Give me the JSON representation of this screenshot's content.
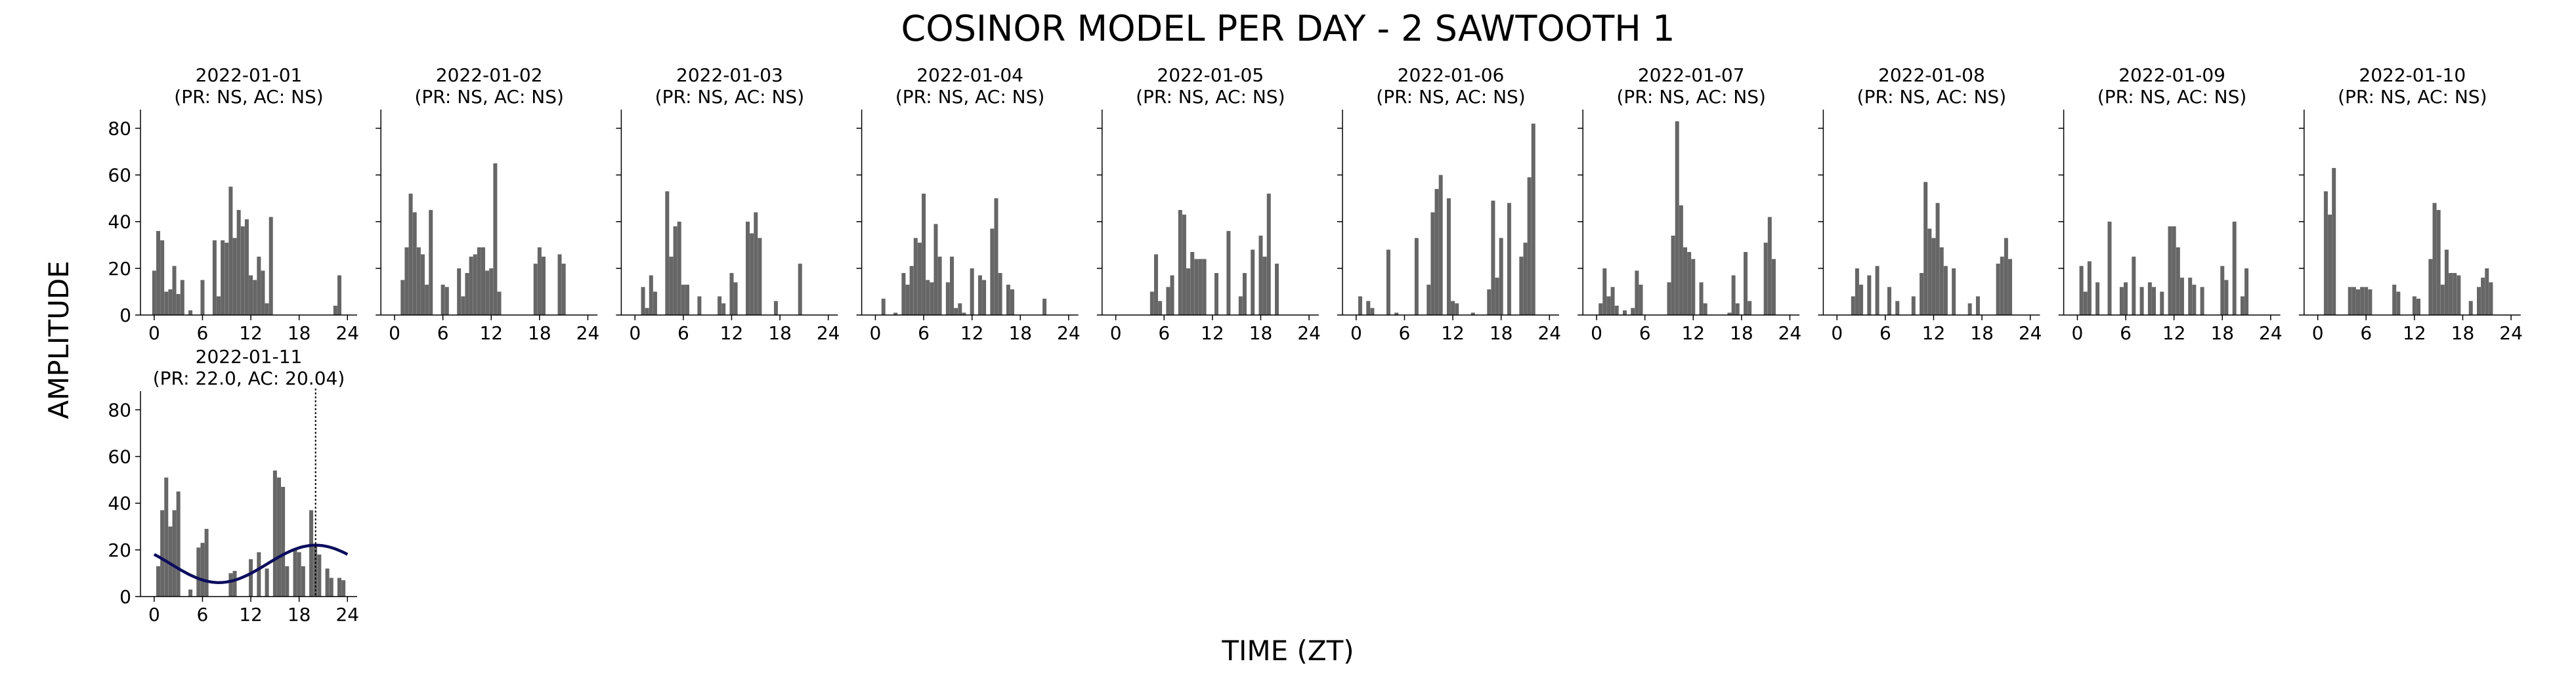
{
  "title": "COSINOR MODEL PER DAY - 2 SAWTOOTH 1",
  "xlabel": "TIME (ZT)",
  "ylabel": "AMPLITUDE",
  "colors": {
    "bar": "#666666",
    "fit": "#0d0d5e",
    "axis": "#000000",
    "vline": "#000000"
  },
  "chart_data": [
    {
      "type": "bar",
      "date": "2022-01-01",
      "subtitle": "(PR: NS, AC: NS)",
      "x": [
        0,
        0.5,
        1,
        1.5,
        2,
        2.5,
        3,
        3.5,
        4,
        4.5,
        5,
        5.5,
        6,
        6.5,
        7,
        7.5,
        8,
        8.5,
        9,
        9.5,
        10,
        10.5,
        11,
        11.5,
        12,
        12.5,
        13,
        13.5,
        14,
        14.5,
        15,
        15.5,
        16,
        16.5,
        17,
        17.5,
        18,
        18.5,
        19,
        19.5,
        20,
        20.5,
        21,
        21.5,
        22,
        22.5,
        23,
        23.5
      ],
      "values": [
        19,
        36,
        32,
        10,
        11,
        21,
        9,
        15,
        0,
        2,
        0,
        0,
        15,
        0,
        0,
        32,
        8,
        32,
        31,
        55,
        33,
        45,
        38,
        41,
        17,
        15,
        25,
        19,
        5,
        42,
        0,
        0,
        0,
        0,
        0,
        0,
        0,
        0,
        0,
        0,
        0,
        0,
        0,
        0,
        0,
        4,
        17,
        0
      ],
      "xticks": [
        0,
        6,
        12,
        18,
        24
      ],
      "yticks": [
        0,
        20,
        40,
        60,
        80
      ],
      "ylim": [
        0,
        88
      ]
    },
    {
      "type": "bar",
      "date": "2022-01-02",
      "subtitle": "(PR: NS, AC: NS)",
      "x": [
        0,
        0.5,
        1,
        1.5,
        2,
        2.5,
        3,
        3.5,
        4,
        4.5,
        5,
        5.5,
        6,
        6.5,
        7,
        7.5,
        8,
        8.5,
        9,
        9.5,
        10,
        10.5,
        11,
        11.5,
        12,
        12.5,
        13,
        13.5,
        14,
        14.5,
        15,
        15.5,
        16,
        16.5,
        17,
        17.5,
        18,
        18.5,
        19,
        19.5,
        20,
        20.5,
        21,
        21.5,
        22,
        22.5,
        23,
        23.5
      ],
      "values": [
        0,
        0,
        15,
        29,
        52,
        44,
        29,
        26,
        13,
        45,
        0,
        0,
        13,
        12,
        0,
        0,
        20,
        8,
        18,
        25,
        26,
        29,
        29,
        19,
        20,
        65,
        10,
        0,
        0,
        0,
        0,
        0,
        0,
        0,
        0,
        22,
        29,
        25,
        0,
        0,
        0,
        26,
        22,
        0,
        0,
        0,
        0,
        0
      ],
      "xticks": [
        0,
        6,
        12,
        18,
        24
      ],
      "yticks": [
        0,
        20,
        40,
        60,
        80
      ],
      "ylim": [
        0,
        88
      ]
    },
    {
      "type": "bar",
      "date": "2022-01-03",
      "subtitle": "(PR: NS, AC: NS)",
      "x": [
        0,
        0.5,
        1,
        1.5,
        2,
        2.5,
        3,
        3.5,
        4,
        4.5,
        5,
        5.5,
        6,
        6.5,
        7,
        7.5,
        8,
        8.5,
        9,
        9.5,
        10,
        10.5,
        11,
        11.5,
        12,
        12.5,
        13,
        13.5,
        14,
        14.5,
        15,
        15.5,
        16,
        16.5,
        17,
        17.5,
        18,
        18.5,
        19,
        19.5,
        20,
        20.5,
        21,
        21.5,
        22,
        22.5,
        23,
        23.5
      ],
      "values": [
        0,
        0,
        12,
        3,
        17,
        10,
        0,
        0,
        53,
        25,
        38,
        40,
        13,
        13,
        0,
        0,
        8,
        0,
        0,
        0,
        0,
        8,
        5,
        0,
        18,
        14,
        0,
        0,
        40,
        35,
        44,
        33,
        0,
        0,
        0,
        6,
        0,
        0,
        0,
        0,
        0,
        22,
        0,
        0,
        0,
        0,
        0,
        0
      ],
      "xticks": [
        0,
        6,
        12,
        18,
        24
      ],
      "yticks": [
        0,
        20,
        40,
        60,
        80
      ],
      "ylim": [
        0,
        88
      ]
    },
    {
      "type": "bar",
      "date": "2022-01-04",
      "subtitle": "(PR: NS, AC: NS)",
      "x": [
        0,
        0.5,
        1,
        1.5,
        2,
        2.5,
        3,
        3.5,
        4,
        4.5,
        5,
        5.5,
        6,
        6.5,
        7,
        7.5,
        8,
        8.5,
        9,
        9.5,
        10,
        10.5,
        11,
        11.5,
        12,
        12.5,
        13,
        13.5,
        14,
        14.5,
        15,
        15.5,
        16,
        16.5,
        17,
        17.5,
        18,
        18.5,
        19,
        19.5,
        20,
        20.5,
        21,
        21.5,
        22,
        22.5,
        23,
        23.5
      ],
      "values": [
        0,
        0,
        7,
        0,
        0,
        1,
        0,
        18,
        13,
        21,
        33,
        31,
        52,
        15,
        14,
        39,
        25,
        0,
        14,
        25,
        3,
        5,
        1,
        0,
        20,
        0,
        17,
        15,
        0,
        37,
        50,
        18,
        0,
        13,
        11,
        0,
        0,
        0,
        0,
        0,
        0,
        0,
        7,
        0,
        0,
        0,
        0,
        0
      ],
      "xticks": [
        0,
        6,
        12,
        18,
        24
      ],
      "yticks": [
        0,
        20,
        40,
        60,
        80
      ],
      "ylim": [
        0,
        88
      ]
    },
    {
      "type": "bar",
      "date": "2022-01-05",
      "subtitle": "(PR: NS, AC: NS)",
      "x": [
        0,
        0.5,
        1,
        1.5,
        2,
        2.5,
        3,
        3.5,
        4,
        4.5,
        5,
        5.5,
        6,
        6.5,
        7,
        7.5,
        8,
        8.5,
        9,
        9.5,
        10,
        10.5,
        11,
        11.5,
        12,
        12.5,
        13,
        13.5,
        14,
        14.5,
        15,
        15.5,
        16,
        16.5,
        17,
        17.5,
        18,
        18.5,
        19,
        19.5,
        20,
        20.5,
        21,
        21.5,
        22,
        22.5,
        23,
        23.5
      ],
      "values": [
        0,
        0,
        0,
        0,
        0,
        0,
        0,
        0,
        0,
        10,
        26,
        6,
        0,
        12,
        17,
        0,
        45,
        43,
        20,
        27,
        24,
        24,
        24,
        0,
        0,
        18,
        0,
        0,
        36,
        0,
        0,
        8,
        18,
        0,
        28,
        0,
        34,
        25,
        52,
        0,
        22,
        0,
        0,
        0,
        0,
        0,
        0,
        0
      ],
      "xticks": [
        0,
        6,
        12,
        18,
        24
      ],
      "yticks": [
        0,
        20,
        40,
        60,
        80
      ],
      "ylim": [
        0,
        88
      ]
    },
    {
      "type": "bar",
      "date": "2022-01-06",
      "subtitle": "(PR: NS, AC: NS)",
      "x": [
        0,
        0.5,
        1,
        1.5,
        2,
        2.5,
        3,
        3.5,
        4,
        4.5,
        5,
        5.5,
        6,
        6.5,
        7,
        7.5,
        8,
        8.5,
        9,
        9.5,
        10,
        10.5,
        11,
        11.5,
        12,
        12.5,
        13,
        13.5,
        14,
        14.5,
        15,
        15.5,
        16,
        16.5,
        17,
        17.5,
        18,
        18.5,
        19,
        19.5,
        20,
        20.5,
        21,
        21.5,
        22,
        22.5,
        23,
        23.5
      ],
      "values": [
        0,
        8,
        0,
        6,
        3,
        0,
        0,
        0,
        28,
        0,
        1,
        0,
        0,
        0,
        0,
        33,
        0,
        0,
        13,
        44,
        54,
        60,
        0,
        50,
        6,
        5,
        0,
        0,
        0,
        1,
        0,
        0,
        0,
        11,
        49,
        16,
        33,
        0,
        48,
        0,
        0,
        25,
        31,
        59,
        82,
        0,
        0,
        0
      ],
      "xticks": [
        0,
        6,
        12,
        18,
        24
      ],
      "yticks": [
        0,
        20,
        40,
        60,
        80
      ],
      "ylim": [
        0,
        88
      ]
    },
    {
      "type": "bar",
      "date": "2022-01-07",
      "subtitle": "(PR: NS, AC: NS)",
      "x": [
        0,
        0.5,
        1,
        1.5,
        2,
        2.5,
        3,
        3.5,
        4,
        4.5,
        5,
        5.5,
        6,
        6.5,
        7,
        7.5,
        8,
        8.5,
        9,
        9.5,
        10,
        10.5,
        11,
        11.5,
        12,
        12.5,
        13,
        13.5,
        14,
        14.5,
        15,
        15.5,
        16,
        16.5,
        17,
        17.5,
        18,
        18.5,
        19,
        19.5,
        20,
        20.5,
        21,
        21.5,
        22,
        22.5,
        23,
        23.5
      ],
      "values": [
        0,
        5,
        20,
        8,
        12,
        4,
        0,
        2,
        0,
        3,
        19,
        13,
        0,
        0,
        0,
        0,
        0,
        0,
        14,
        34,
        83,
        47,
        29,
        27,
        24,
        0,
        14,
        5,
        0,
        0,
        0,
        0,
        0,
        1,
        17,
        5,
        0,
        27,
        6,
        0,
        0,
        0,
        31,
        42,
        24,
        0,
        0,
        0
      ],
      "xticks": [
        0,
        6,
        12,
        18,
        24
      ],
      "yticks": [
        0,
        20,
        40,
        60,
        80
      ],
      "ylim": [
        0,
        88
      ]
    },
    {
      "type": "bar",
      "date": "2022-01-08",
      "subtitle": "(PR: NS, AC: NS)",
      "x": [
        0,
        0.5,
        1,
        1.5,
        2,
        2.5,
        3,
        3.5,
        4,
        4.5,
        5,
        5.5,
        6,
        6.5,
        7,
        7.5,
        8,
        8.5,
        9,
        9.5,
        10,
        10.5,
        11,
        11.5,
        12,
        12.5,
        13,
        13.5,
        14,
        14.5,
        15,
        15.5,
        16,
        16.5,
        17,
        17.5,
        18,
        18.5,
        19,
        19.5,
        20,
        20.5,
        21,
        21.5,
        22,
        22.5,
        23,
        23.5
      ],
      "values": [
        0,
        0,
        0,
        0,
        8,
        20,
        13,
        0,
        17,
        0,
        21,
        0,
        0,
        12,
        0,
        6,
        0,
        0,
        0,
        8,
        0,
        18,
        57,
        37,
        33,
        48,
        29,
        21,
        0,
        20,
        0,
        0,
        0,
        5,
        0,
        8,
        0,
        0,
        0,
        0,
        22,
        25,
        33,
        24,
        0,
        0,
        0,
        0
      ],
      "xticks": [
        0,
        6,
        12,
        18,
        24
      ],
      "yticks": [
        0,
        20,
        40,
        60,
        80
      ],
      "ylim": [
        0,
        88
      ]
    },
    {
      "type": "bar",
      "date": "2022-01-09",
      "subtitle": "(PR: NS, AC: NS)",
      "x": [
        0,
        0.5,
        1,
        1.5,
        2,
        2.5,
        3,
        3.5,
        4,
        4.5,
        5,
        5.5,
        6,
        6.5,
        7,
        7.5,
        8,
        8.5,
        9,
        9.5,
        10,
        10.5,
        11,
        11.5,
        12,
        12.5,
        13,
        13.5,
        14,
        14.5,
        15,
        15.5,
        16,
        16.5,
        17,
        17.5,
        18,
        18.5,
        19,
        19.5,
        20,
        20.5,
        21,
        21.5,
        22,
        22.5,
        23,
        23.5
      ],
      "values": [
        0,
        21,
        10,
        23,
        0,
        14,
        0,
        0,
        40,
        0,
        0,
        12,
        14,
        0,
        25,
        0,
        12,
        0,
        14,
        12,
        0,
        10,
        0,
        38,
        38,
        29,
        16,
        0,
        16,
        13,
        0,
        12,
        0,
        0,
        0,
        0,
        21,
        15,
        0,
        40,
        0,
        8,
        20,
        0,
        0,
        0,
        0,
        0
      ],
      "xticks": [
        0,
        6,
        12,
        18,
        24
      ],
      "yticks": [
        0,
        20,
        40,
        60,
        80
      ],
      "ylim": [
        0,
        88
      ]
    },
    {
      "type": "bar",
      "date": "2022-01-10",
      "subtitle": "(PR: NS, AC: NS)",
      "x": [
        0,
        0.5,
        1,
        1.5,
        2,
        2.5,
        3,
        3.5,
        4,
        4.5,
        5,
        5.5,
        6,
        6.5,
        7,
        7.5,
        8,
        8.5,
        9,
        9.5,
        10,
        10.5,
        11,
        11.5,
        12,
        12.5,
        13,
        13.5,
        14,
        14.5,
        15,
        15.5,
        16,
        16.5,
        17,
        17.5,
        18,
        18.5,
        19,
        19.5,
        20,
        20.5,
        21,
        21.5,
        22,
        22.5,
        23,
        23.5
      ],
      "values": [
        0,
        0,
        53,
        43,
        63,
        0,
        0,
        0,
        12,
        12,
        11,
        12,
        12,
        11,
        0,
        0,
        0,
        0,
        0,
        13,
        10,
        0,
        0,
        0,
        8,
        7,
        0,
        0,
        24,
        48,
        45,
        13,
        28,
        18,
        18,
        17,
        0,
        0,
        6,
        0,
        12,
        16,
        20,
        14,
        0,
        0,
        0,
        0
      ],
      "xticks": [
        0,
        6,
        12,
        18,
        24
      ],
      "yticks": [
        0,
        20,
        40,
        60,
        80
      ],
      "ylim": [
        0,
        88
      ]
    },
    {
      "type": "bar",
      "date": "2022-01-11",
      "subtitle": "(PR: 22.0, AC: 20.04)",
      "x": [
        0,
        0.5,
        1,
        1.5,
        2,
        2.5,
        3,
        3.5,
        4,
        4.5,
        5,
        5.5,
        6,
        6.5,
        7,
        7.5,
        8,
        8.5,
        9,
        9.5,
        10,
        10.5,
        11,
        11.5,
        12,
        12.5,
        13,
        13.5,
        14,
        14.5,
        15,
        15.5,
        16,
        16.5,
        17,
        17.5,
        18,
        18.5,
        19,
        19.5,
        20,
        20.5,
        21,
        21.5,
        22,
        22.5,
        23,
        23.5
      ],
      "values": [
        0,
        13,
        37,
        51,
        30,
        37,
        45,
        0,
        0,
        3,
        0,
        21,
        23,
        29,
        0,
        0,
        0,
        0,
        0,
        10,
        11,
        0,
        0,
        0,
        16,
        0,
        19,
        0,
        12,
        0,
        54,
        51,
        47,
        13,
        0,
        20,
        19,
        13,
        0,
        37,
        22,
        18,
        0,
        12,
        8,
        0,
        8,
        7
      ],
      "xticks": [
        0,
        6,
        12,
        18,
        24
      ],
      "yticks": [
        0,
        20,
        40,
        60,
        80
      ],
      "ylim": [
        0,
        88
      ],
      "fit": {
        "type": "line",
        "mesor": 14,
        "amplitude": 8,
        "acrophase": 20.04,
        "period": 24
      },
      "vline_x": 20.04
    }
  ]
}
